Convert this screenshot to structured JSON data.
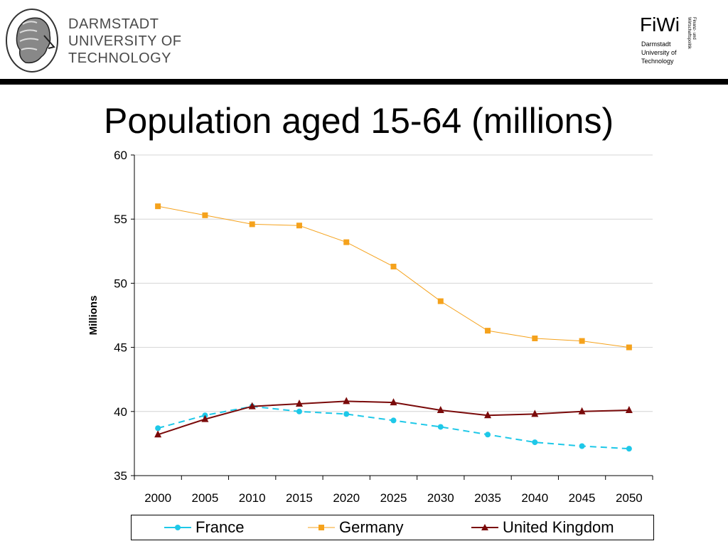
{
  "header": {
    "university_lines": [
      "DARMSTADT",
      "UNIVERSITY OF",
      "TECHNOLOGY"
    ],
    "fiwi": {
      "title": "FiWi",
      "sub_lines": [
        "Darmstadt",
        "University of",
        "Technology"
      ],
      "vertical_lines": [
        "Finanz- und",
        "Wirtschaftspolitik"
      ]
    }
  },
  "slide": {
    "title": "Population aged 15-64 (millions)"
  },
  "colors": {
    "france": "#1ec8e8",
    "germany": "#f5a21c",
    "uk": "#7a0a0a",
    "grid": "#d4d4d4",
    "bar": "#000000"
  },
  "chart_data": {
    "type": "line",
    "title": "Population aged 15-64 (millions)",
    "xlabel": "",
    "ylabel": "Millions",
    "ylim": [
      35,
      60
    ],
    "yticks": [
      35,
      40,
      45,
      50,
      55,
      60
    ],
    "categories": [
      "2000",
      "2005",
      "2010",
      "2015",
      "2020",
      "2025",
      "2030",
      "2035",
      "2040",
      "2045",
      "2050"
    ],
    "grid": true,
    "legend": "bottom",
    "series": [
      {
        "name": "France",
        "key": "france",
        "marker": "circle",
        "dashed": true,
        "values": [
          38.7,
          39.7,
          40.4,
          40.0,
          39.8,
          39.3,
          38.8,
          38.2,
          37.6,
          37.3,
          37.1
        ]
      },
      {
        "name": "Germany",
        "key": "germany",
        "marker": "square",
        "dashed": false,
        "values": [
          56.0,
          55.3,
          54.6,
          54.5,
          53.2,
          51.3,
          48.6,
          46.3,
          45.7,
          45.5,
          45.0
        ]
      },
      {
        "name": "United Kingdom",
        "key": "uk",
        "marker": "triangle",
        "dashed": false,
        "values": [
          38.2,
          39.4,
          40.4,
          40.6,
          40.8,
          40.7,
          40.1,
          39.7,
          39.8,
          40.0,
          40.1
        ]
      }
    ]
  }
}
